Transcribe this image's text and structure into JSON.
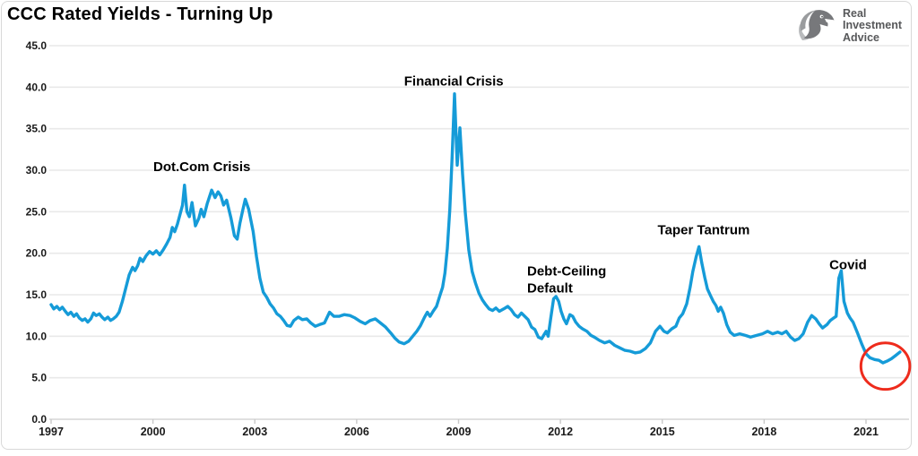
{
  "header": {
    "title": "CCC Rated Yields - Turning Up"
  },
  "logo": {
    "icon": "eagle-icon",
    "lines": [
      "Real",
      "Investment",
      "Advice"
    ],
    "text_color": "#57585a"
  },
  "colors": {
    "line": "#159bd8",
    "grid": "#e9e9e9",
    "axis": "#d6d6d6",
    "tick": "#c9c9c9",
    "axis_label": "#1a1a1a",
    "annotation": "#000000",
    "highlight": "#ee2b1c"
  },
  "chart_data": {
    "type": "line",
    "title": "CCC Rated Yields - Turning Up",
    "xlabel": "",
    "ylabel": "",
    "ylim": [
      0,
      45
    ],
    "grid": "horizontal",
    "legend": "none",
    "y_ticks": [
      {
        "label": "0.0",
        "value": 0
      },
      {
        "label": "5.0",
        "value": 5
      },
      {
        "label": "10.0",
        "value": 10
      },
      {
        "label": "15.0",
        "value": 15
      },
      {
        "label": "20.0",
        "value": 20
      },
      {
        "label": "25.0",
        "value": 25
      },
      {
        "label": "30.0",
        "value": 30
      },
      {
        "label": "35.0",
        "value": 35
      },
      {
        "label": "40.0",
        "value": 40
      },
      {
        "label": "45.0",
        "value": 45
      }
    ],
    "x_ticks": [
      {
        "label": "1997",
        "year": 1997
      },
      {
        "label": "2000",
        "year": 2000
      },
      {
        "label": "2003",
        "year": 2003
      },
      {
        "label": "2006",
        "year": 2006
      },
      {
        "label": "2009",
        "year": 2009
      },
      {
        "label": "2012",
        "year": 2012
      },
      {
        "label": "2015",
        "year": 2015
      },
      {
        "label": "2018",
        "year": 2018
      },
      {
        "label": "2021",
        "year": 2021
      }
    ],
    "annotations": [
      {
        "id": "dot-com-crisis",
        "lines": [
          "Dot.Com Crisis"
        ],
        "x": 2001.44,
        "y": 29.9,
        "anchor": "middle"
      },
      {
        "id": "financial-crisis",
        "lines": [
          "Financial Crisis"
        ],
        "x": 2008.86,
        "y": 40.2,
        "anchor": "middle"
      },
      {
        "id": "debt-ceiling-default",
        "lines": [
          "Debt-Ceiling",
          "Default"
        ],
        "x": 2011.02,
        "y": 17.3,
        "anchor": "start"
      },
      {
        "id": "taper-tantrum",
        "lines": [
          "Taper Tantrum"
        ],
        "x": 2016.22,
        "y": 22.3,
        "anchor": "middle"
      },
      {
        "id": "covid",
        "lines": [
          "Covid"
        ],
        "x": 2020.47,
        "y": 18.1,
        "anchor": "middle"
      }
    ],
    "highlight_ellipse": {
      "x": 2021.57,
      "y": 6.4,
      "rx_years": 0.72,
      "ry_units": 2.8,
      "color": "#ee2b1c"
    },
    "series": [
      {
        "name": "CCC Rated Yields",
        "color": "#159bd8",
        "points": [
          [
            1997.0,
            13.8
          ],
          [
            1997.08,
            13.3
          ],
          [
            1997.17,
            13.6
          ],
          [
            1997.25,
            13.2
          ],
          [
            1997.33,
            13.5
          ],
          [
            1997.42,
            13.0
          ],
          [
            1997.5,
            12.6
          ],
          [
            1997.58,
            12.9
          ],
          [
            1997.67,
            12.4
          ],
          [
            1997.75,
            12.7
          ],
          [
            1997.83,
            12.2
          ],
          [
            1997.92,
            11.9
          ],
          [
            1998.0,
            12.1
          ],
          [
            1998.08,
            11.7
          ],
          [
            1998.17,
            12.1
          ],
          [
            1998.25,
            12.8
          ],
          [
            1998.33,
            12.5
          ],
          [
            1998.42,
            12.7
          ],
          [
            1998.5,
            12.3
          ],
          [
            1998.58,
            12.0
          ],
          [
            1998.67,
            12.3
          ],
          [
            1998.75,
            11.9
          ],
          [
            1998.83,
            12.1
          ],
          [
            1998.92,
            12.4
          ],
          [
            1999.0,
            12.9
          ],
          [
            1999.1,
            14.2
          ],
          [
            1999.2,
            15.8
          ],
          [
            1999.3,
            17.4
          ],
          [
            1999.4,
            18.3
          ],
          [
            1999.47,
            17.9
          ],
          [
            1999.55,
            18.5
          ],
          [
            1999.62,
            19.4
          ],
          [
            1999.7,
            19.0
          ],
          [
            1999.8,
            19.7
          ],
          [
            1999.9,
            20.2
          ],
          [
            2000.0,
            19.9
          ],
          [
            2000.1,
            20.3
          ],
          [
            2000.2,
            19.8
          ],
          [
            2000.3,
            20.4
          ],
          [
            2000.4,
            21.1
          ],
          [
            2000.5,
            21.9
          ],
          [
            2000.57,
            23.1
          ],
          [
            2000.64,
            22.6
          ],
          [
            2000.72,
            23.5
          ],
          [
            2000.8,
            24.7
          ],
          [
            2000.87,
            25.8
          ],
          [
            2000.93,
            28.2
          ],
          [
            2001.0,
            25.0
          ],
          [
            2001.07,
            24.4
          ],
          [
            2001.15,
            26.1
          ],
          [
            2001.25,
            23.3
          ],
          [
            2001.35,
            24.2
          ],
          [
            2001.42,
            25.3
          ],
          [
            2001.5,
            24.4
          ],
          [
            2001.6,
            26.0
          ],
          [
            2001.73,
            27.6
          ],
          [
            2001.83,
            26.7
          ],
          [
            2001.92,
            27.4
          ],
          [
            2002.0,
            26.9
          ],
          [
            2002.08,
            25.8
          ],
          [
            2002.17,
            26.4
          ],
          [
            2002.3,
            24.2
          ],
          [
            2002.4,
            22.1
          ],
          [
            2002.48,
            21.7
          ],
          [
            2002.56,
            23.6
          ],
          [
            2002.65,
            25.3
          ],
          [
            2002.72,
            26.5
          ],
          [
            2002.82,
            25.3
          ],
          [
            2002.95,
            22.6
          ],
          [
            2003.05,
            19.6
          ],
          [
            2003.15,
            17.0
          ],
          [
            2003.25,
            15.3
          ],
          [
            2003.35,
            14.7
          ],
          [
            2003.45,
            13.9
          ],
          [
            2003.55,
            13.4
          ],
          [
            2003.65,
            12.7
          ],
          [
            2003.75,
            12.4
          ],
          [
            2003.85,
            11.9
          ],
          [
            2003.95,
            11.3
          ],
          [
            2004.05,
            11.2
          ],
          [
            2004.15,
            11.9
          ],
          [
            2004.28,
            12.3
          ],
          [
            2004.4,
            12.0
          ],
          [
            2004.53,
            12.1
          ],
          [
            2004.65,
            11.6
          ],
          [
            2004.78,
            11.2
          ],
          [
            2004.9,
            11.4
          ],
          [
            2005.05,
            11.6
          ],
          [
            2005.2,
            12.9
          ],
          [
            2005.33,
            12.4
          ],
          [
            2005.48,
            12.4
          ],
          [
            2005.63,
            12.6
          ],
          [
            2005.8,
            12.5
          ],
          [
            2005.95,
            12.2
          ],
          [
            2006.1,
            11.8
          ],
          [
            2006.25,
            11.5
          ],
          [
            2006.4,
            11.9
          ],
          [
            2006.55,
            12.1
          ],
          [
            2006.7,
            11.6
          ],
          [
            2006.85,
            11.1
          ],
          [
            2007.0,
            10.4
          ],
          [
            2007.12,
            9.8
          ],
          [
            2007.25,
            9.3
          ],
          [
            2007.4,
            9.1
          ],
          [
            2007.53,
            9.4
          ],
          [
            2007.65,
            10.0
          ],
          [
            2007.77,
            10.6
          ],
          [
            2007.88,
            11.3
          ],
          [
            2008.0,
            12.3
          ],
          [
            2008.08,
            12.9
          ],
          [
            2008.16,
            12.4
          ],
          [
            2008.25,
            13.0
          ],
          [
            2008.35,
            13.6
          ],
          [
            2008.45,
            14.9
          ],
          [
            2008.53,
            15.9
          ],
          [
            2008.6,
            17.6
          ],
          [
            2008.67,
            20.6
          ],
          [
            2008.74,
            25.2
          ],
          [
            2008.81,
            31.5
          ],
          [
            2008.88,
            39.2
          ],
          [
            2008.96,
            30.6
          ],
          [
            2009.04,
            35.1
          ],
          [
            2009.12,
            29.5
          ],
          [
            2009.2,
            24.8
          ],
          [
            2009.3,
            20.4
          ],
          [
            2009.4,
            17.8
          ],
          [
            2009.5,
            16.4
          ],
          [
            2009.6,
            15.2
          ],
          [
            2009.7,
            14.4
          ],
          [
            2009.8,
            13.8
          ],
          [
            2009.9,
            13.3
          ],
          [
            2010.0,
            13.1
          ],
          [
            2010.1,
            13.4
          ],
          [
            2010.2,
            13.0
          ],
          [
            2010.33,
            13.3
          ],
          [
            2010.45,
            13.6
          ],
          [
            2010.55,
            13.2
          ],
          [
            2010.65,
            12.6
          ],
          [
            2010.75,
            12.3
          ],
          [
            2010.85,
            12.8
          ],
          [
            2010.95,
            12.4
          ],
          [
            2011.05,
            12.0
          ],
          [
            2011.15,
            11.1
          ],
          [
            2011.25,
            10.8
          ],
          [
            2011.35,
            9.9
          ],
          [
            2011.45,
            9.7
          ],
          [
            2011.52,
            10.2
          ],
          [
            2011.58,
            10.6
          ],
          [
            2011.64,
            10.0
          ],
          [
            2011.72,
            12.3
          ],
          [
            2011.8,
            14.5
          ],
          [
            2011.87,
            14.8
          ],
          [
            2011.95,
            14.2
          ],
          [
            2012.02,
            13.0
          ],
          [
            2012.1,
            12.1
          ],
          [
            2012.18,
            11.5
          ],
          [
            2012.28,
            12.6
          ],
          [
            2012.36,
            12.4
          ],
          [
            2012.45,
            11.7
          ],
          [
            2012.55,
            11.2
          ],
          [
            2012.65,
            10.9
          ],
          [
            2012.78,
            10.6
          ],
          [
            2012.9,
            10.1
          ],
          [
            2013.0,
            9.9
          ],
          [
            2013.15,
            9.5
          ],
          [
            2013.3,
            9.2
          ],
          [
            2013.45,
            9.4
          ],
          [
            2013.6,
            8.9
          ],
          [
            2013.75,
            8.6
          ],
          [
            2013.9,
            8.3
          ],
          [
            2014.05,
            8.2
          ],
          [
            2014.2,
            8.0
          ],
          [
            2014.35,
            8.1
          ],
          [
            2014.5,
            8.5
          ],
          [
            2014.65,
            9.2
          ],
          [
            2014.8,
            10.6
          ],
          [
            2014.93,
            11.2
          ],
          [
            2015.05,
            10.6
          ],
          [
            2015.15,
            10.4
          ],
          [
            2015.28,
            10.9
          ],
          [
            2015.4,
            11.2
          ],
          [
            2015.5,
            12.2
          ],
          [
            2015.6,
            12.7
          ],
          [
            2015.72,
            13.9
          ],
          [
            2015.82,
            15.9
          ],
          [
            2015.9,
            17.8
          ],
          [
            2016.0,
            19.6
          ],
          [
            2016.08,
            20.8
          ],
          [
            2016.16,
            18.9
          ],
          [
            2016.25,
            17.1
          ],
          [
            2016.33,
            15.7
          ],
          [
            2016.42,
            14.9
          ],
          [
            2016.5,
            14.2
          ],
          [
            2016.58,
            13.7
          ],
          [
            2016.65,
            13.0
          ],
          [
            2016.72,
            13.5
          ],
          [
            2016.8,
            12.8
          ],
          [
            2016.9,
            11.4
          ],
          [
            2017.0,
            10.5
          ],
          [
            2017.12,
            10.1
          ],
          [
            2017.28,
            10.3
          ],
          [
            2017.45,
            10.1
          ],
          [
            2017.6,
            9.9
          ],
          [
            2017.78,
            10.1
          ],
          [
            2017.95,
            10.3
          ],
          [
            2018.1,
            10.6
          ],
          [
            2018.25,
            10.3
          ],
          [
            2018.4,
            10.5
          ],
          [
            2018.52,
            10.3
          ],
          [
            2018.65,
            10.6
          ],
          [
            2018.78,
            9.9
          ],
          [
            2018.9,
            9.5
          ],
          [
            2019.02,
            9.7
          ],
          [
            2019.15,
            10.3
          ],
          [
            2019.28,
            11.7
          ],
          [
            2019.4,
            12.5
          ],
          [
            2019.52,
            12.1
          ],
          [
            2019.62,
            11.5
          ],
          [
            2019.72,
            11.0
          ],
          [
            2019.85,
            11.4
          ],
          [
            2019.95,
            11.9
          ],
          [
            2020.05,
            12.2
          ],
          [
            2020.12,
            12.4
          ],
          [
            2020.2,
            17.0
          ],
          [
            2020.27,
            17.9
          ],
          [
            2020.35,
            14.2
          ],
          [
            2020.45,
            12.8
          ],
          [
            2020.53,
            12.2
          ],
          [
            2020.62,
            11.7
          ],
          [
            2020.75,
            10.4
          ],
          [
            2020.88,
            9.0
          ],
          [
            2021.0,
            7.9
          ],
          [
            2021.12,
            7.4
          ],
          [
            2021.25,
            7.2
          ],
          [
            2021.38,
            7.1
          ],
          [
            2021.5,
            6.8
          ],
          [
            2021.62,
            7.0
          ],
          [
            2021.75,
            7.3
          ],
          [
            2021.88,
            7.7
          ],
          [
            2022.0,
            8.1
          ]
        ]
      }
    ]
  }
}
